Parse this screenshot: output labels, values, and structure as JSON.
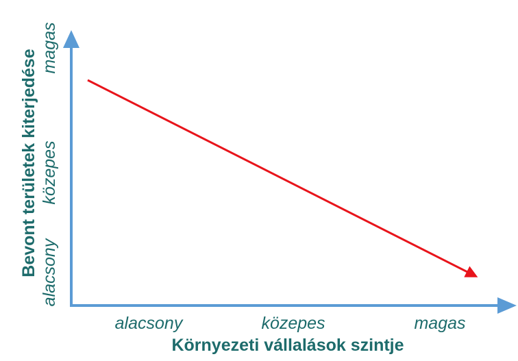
{
  "x_axis": {
    "title": "Környezeti vállalások szintje",
    "labels": [
      "alacsony",
      "közepes",
      "magas"
    ]
  },
  "y_axis": {
    "title": "Bevont területek kiterjedése",
    "labels": [
      "alacsony",
      "közepes",
      "magas"
    ]
  }
}
